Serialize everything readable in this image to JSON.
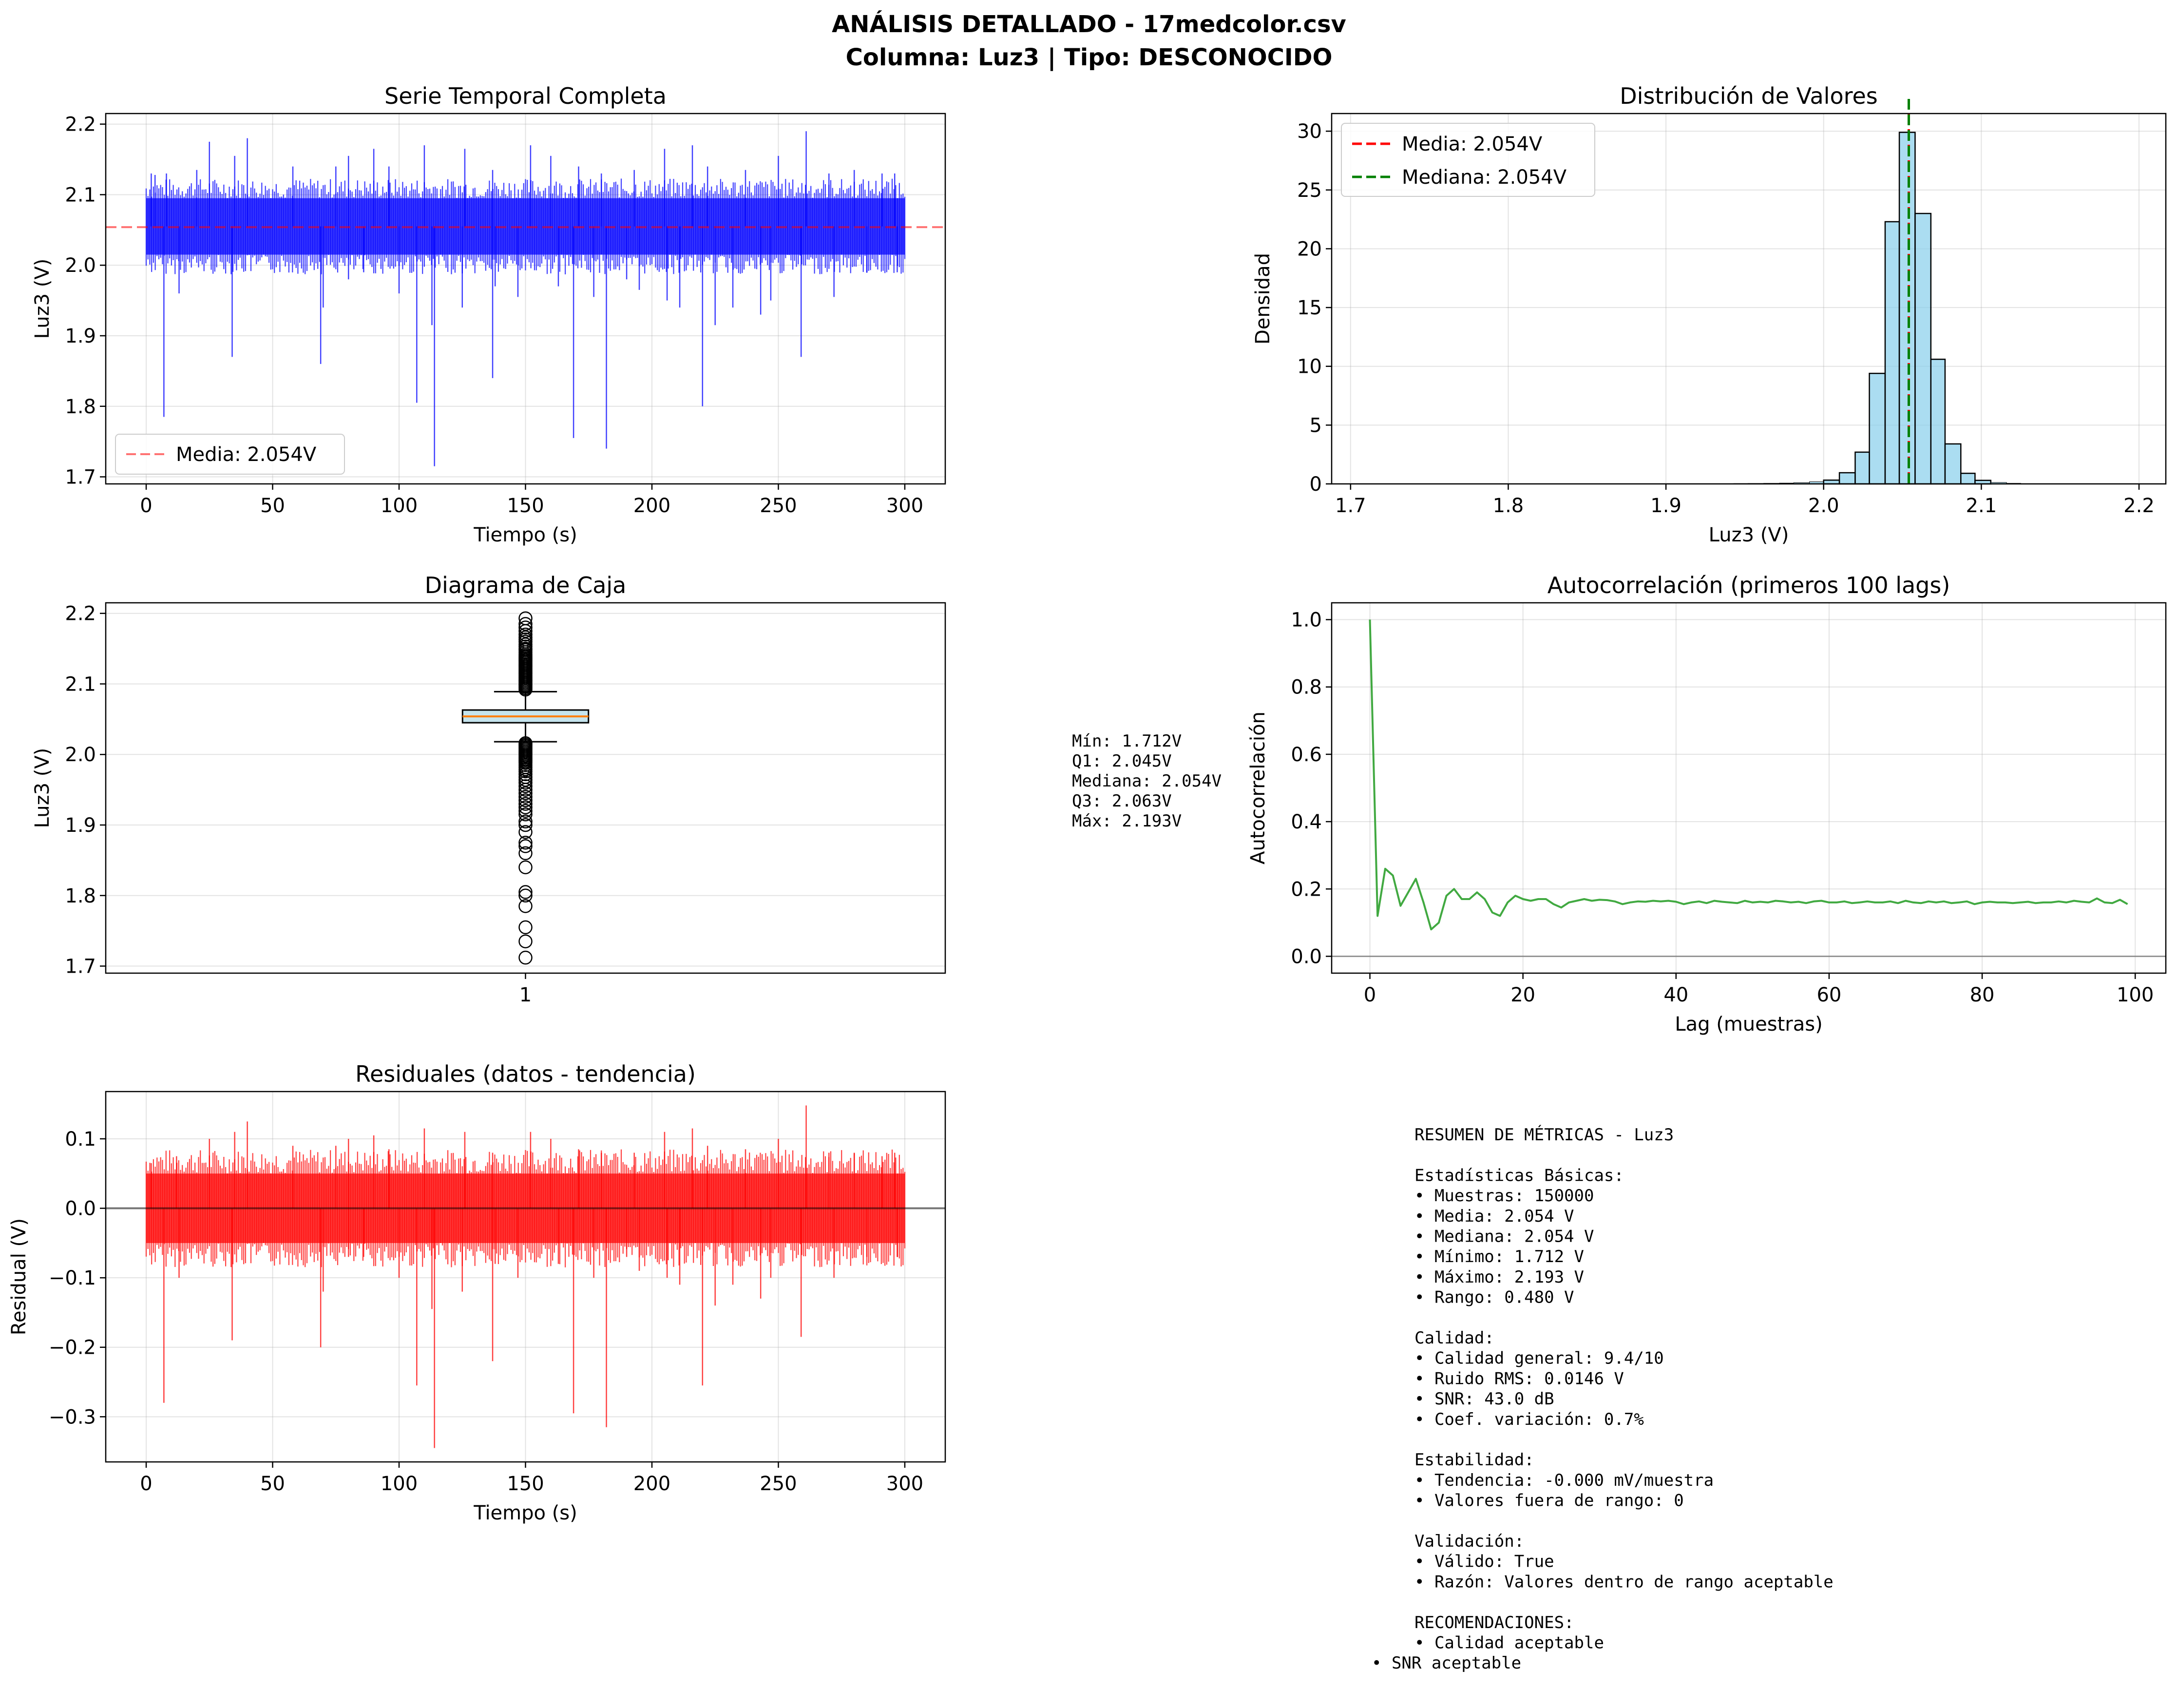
{
  "figure": {
    "title_line1": "ANÁLISIS DETALLADO - 17medcolor.csv",
    "title_line2": "Columna: Luz3 | Tipo: DESCONOCIDO"
  },
  "colors": {
    "series_blue": "#0000ff",
    "residual_red": "#ff0000",
    "mean_line": "#ff0000",
    "median_line": "#008000",
    "hist_fill": "#87ceeb",
    "acf_line": "#2ca02c",
    "box_median": "#ff7f0e",
    "box_fill": "#add8e6"
  },
  "chart_data": [
    {
      "type": "line",
      "id": "timeseries",
      "title": "Serie Temporal Completa",
      "xlabel": "Tiempo (s)",
      "ylabel": "Luz3 (V)",
      "xlim": [
        -16,
        316
      ],
      "ylim": [
        1.69,
        2.215
      ],
      "xticks": [
        0,
        50,
        100,
        150,
        200,
        250,
        300
      ],
      "yticks": [
        1.7,
        1.8,
        1.9,
        2.0,
        2.1,
        2.2
      ],
      "ytick_labels": [
        "1.7",
        "1.8",
        "1.9",
        "2.0",
        "2.1",
        "2.2"
      ],
      "legend": [
        {
          "label": "Media: 2.054V",
          "color": "#ff0000",
          "style": "dashed"
        }
      ],
      "legend_position": "lower-left",
      "grid": true,
      "mean": 2.054,
      "band": {
        "low": 2.015,
        "high": 2.095,
        "t_start": 0,
        "t_end": 300
      },
      "spikes_up": [
        [
          2,
          2.13
        ],
        [
          3.5,
          2.128
        ],
        [
          8,
          2.13
        ],
        [
          20,
          2.135
        ],
        [
          25,
          2.175
        ],
        [
          35,
          2.155
        ],
        [
          40,
          2.18
        ],
        [
          58,
          2.14
        ],
        [
          75,
          2.14
        ],
        [
          80,
          2.155
        ],
        [
          90,
          2.165
        ],
        [
          96,
          2.14
        ],
        [
          110,
          2.17
        ],
        [
          126,
          2.165
        ],
        [
          137,
          2.135
        ],
        [
          152,
          2.17
        ],
        [
          160,
          2.155
        ],
        [
          171,
          2.14
        ],
        [
          180,
          2.13
        ],
        [
          193,
          2.135
        ],
        [
          205,
          2.165
        ],
        [
          216,
          2.17
        ],
        [
          222,
          2.14
        ],
        [
          237,
          2.135
        ],
        [
          250,
          2.155
        ],
        [
          261,
          2.19
        ],
        [
          270,
          2.13
        ],
        [
          280,
          2.135
        ],
        [
          291,
          2.13
        ],
        [
          296,
          2.13
        ]
      ],
      "spikes_down": [
        [
          7,
          1.785
        ],
        [
          13,
          1.96
        ],
        [
          34,
          1.87
        ],
        [
          69,
          1.86
        ],
        [
          70,
          1.94
        ],
        [
          80,
          1.98
        ],
        [
          86,
          1.99
        ],
        [
          100,
          1.96
        ],
        [
          107,
          1.805
        ],
        [
          113,
          1.915
        ],
        [
          114,
          1.715
        ],
        [
          125,
          1.94
        ],
        [
          137,
          1.84
        ],
        [
          138,
          1.97
        ],
        [
          147,
          1.955
        ],
        [
          163,
          1.97
        ],
        [
          169,
          1.755
        ],
        [
          177,
          1.955
        ],
        [
          182,
          1.74
        ],
        [
          190,
          1.98
        ],
        [
          195,
          1.965
        ],
        [
          206,
          1.95
        ],
        [
          211,
          1.94
        ],
        [
          220,
          1.8
        ],
        [
          225,
          1.915
        ],
        [
          232,
          1.94
        ],
        [
          243,
          1.93
        ],
        [
          247,
          1.95
        ],
        [
          259,
          1.87
        ],
        [
          272,
          1.955
        ],
        [
          285,
          1.99
        ],
        [
          297,
          1.99
        ]
      ]
    },
    {
      "type": "bar",
      "id": "histogram",
      "title": "Distribución de Valores",
      "xlabel": "Luz3 (V)",
      "ylabel": "Densidad",
      "xlim": [
        1.688,
        2.217
      ],
      "ylim": [
        0,
        31.5
      ],
      "xticks": [
        1.7,
        1.8,
        1.9,
        2.0,
        2.1,
        2.2
      ],
      "xtick_labels": [
        "1.7",
        "1.8",
        "1.9",
        "2.0",
        "2.1",
        "2.2"
      ],
      "yticks": [
        0,
        5,
        10,
        15,
        20,
        25,
        30
      ],
      "grid": true,
      "bin_edges": [
        1.712,
        1.722,
        1.732,
        1.741,
        1.751,
        1.76,
        1.77,
        1.78,
        1.789,
        1.799,
        1.808,
        1.818,
        1.828,
        1.837,
        1.847,
        1.856,
        1.866,
        1.876,
        1.885,
        1.895,
        1.904,
        1.914,
        1.924,
        1.933,
        1.943,
        1.952,
        1.962,
        1.972,
        1.981,
        1.991,
        2.0,
        2.01,
        2.02,
        2.029,
        2.039,
        2.048,
        2.058,
        2.068,
        2.077,
        2.087,
        2.096,
        2.106,
        2.116,
        2.125,
        2.135,
        2.144,
        2.154,
        2.164,
        2.173,
        2.183,
        2.193
      ],
      "values": [
        0.01,
        0,
        0,
        0.01,
        0,
        0,
        0,
        0,
        0,
        0.01,
        0,
        0,
        0,
        0,
        0,
        0.01,
        0.01,
        0,
        0,
        0,
        0,
        0.01,
        0.02,
        0.02,
        0.03,
        0.04,
        0.05,
        0.07,
        0.1,
        0.18,
        0.32,
        0.95,
        2.7,
        9.4,
        22.3,
        29.9,
        23.0,
        10.6,
        3.4,
        0.9,
        0.3,
        0.12,
        0.05,
        0.02,
        0.01,
        0.01,
        0.01,
        0,
        0,
        0
      ],
      "mean": 2.054,
      "median": 2.054,
      "legend": [
        {
          "label": "Media: 2.054V",
          "color": "#ff0000",
          "style": "dashed"
        },
        {
          "label": "Mediana: 2.054V",
          "color": "#008000",
          "style": "dashed"
        }
      ],
      "legend_position": "upper-left"
    },
    {
      "type": "box",
      "id": "boxplot",
      "title": "Diagrama de Caja",
      "ylabel": "Luz3 (V)",
      "xtick_labels": [
        "1"
      ],
      "ylim": [
        1.69,
        2.215
      ],
      "yticks": [
        1.7,
        1.8,
        1.9,
        2.0,
        2.1,
        2.2
      ],
      "ytick_labels": [
        "1.7",
        "1.8",
        "1.9",
        "2.0",
        "2.1",
        "2.2"
      ],
      "grid": true,
      "q1": 2.045,
      "median": 2.054,
      "q3": 2.063,
      "whisker_low": 2.018,
      "whisker_high": 2.089,
      "outliers_high": [
        2.092,
        2.094,
        2.096,
        2.098,
        2.1,
        2.102,
        2.104,
        2.106,
        2.108,
        2.11,
        2.112,
        2.114,
        2.116,
        2.118,
        2.12,
        2.122,
        2.124,
        2.126,
        2.128,
        2.13,
        2.132,
        2.134,
        2.136,
        2.138,
        2.14,
        2.142,
        2.145,
        2.148,
        2.15,
        2.153,
        2.156,
        2.16,
        2.163,
        2.166,
        2.17,
        2.175,
        2.18,
        2.185,
        2.193
      ],
      "outliers_low": [
        2.016,
        2.014,
        2.012,
        2.01,
        2.008,
        2.006,
        2.004,
        2.002,
        2.0,
        1.998,
        1.996,
        1.994,
        1.992,
        1.99,
        1.988,
        1.985,
        1.982,
        1.979,
        1.976,
        1.972,
        1.968,
        1.964,
        1.96,
        1.955,
        1.95,
        1.945,
        1.94,
        1.935,
        1.93,
        1.925,
        1.92,
        1.915,
        1.905,
        1.9,
        1.89,
        1.875,
        1.87,
        1.86,
        1.84,
        1.805,
        1.8,
        1.785,
        1.755,
        1.735,
        1.712
      ],
      "stats_lines": [
        "Mín: 1.712V",
        "Q1: 2.045V",
        "Mediana: 2.054V",
        "Q3: 2.063V",
        "Máx: 2.193V"
      ]
    },
    {
      "type": "line",
      "id": "autocorr",
      "title": "Autocorrelación (primeros 100 lags)",
      "xlabel": "Lag (muestras)",
      "ylabel": "Autocorrelación",
      "xlim": [
        -5,
        104
      ],
      "ylim": [
        -0.05,
        1.05
      ],
      "xticks": [
        0,
        20,
        40,
        60,
        80,
        100
      ],
      "yticks": [
        0.0,
        0.2,
        0.4,
        0.6,
        0.8,
        1.0
      ],
      "ytick_labels": [
        "0.0",
        "0.2",
        "0.4",
        "0.6",
        "0.8",
        "1.0"
      ],
      "grid": true,
      "x": [
        0,
        1,
        2,
        3,
        4,
        5,
        6,
        7,
        8,
        9,
        10,
        11,
        12,
        13,
        14,
        15,
        16,
        17,
        18,
        19,
        20,
        21,
        22,
        23,
        24,
        25,
        26,
        27,
        28,
        29,
        30,
        31,
        32,
        33,
        34,
        35,
        36,
        37,
        38,
        39,
        40,
        41,
        42,
        43,
        44,
        45,
        46,
        47,
        48,
        49,
        50,
        51,
        52,
        53,
        54,
        55,
        56,
        57,
        58,
        59,
        60,
        61,
        62,
        63,
        64,
        65,
        66,
        67,
        68,
        69,
        70,
        71,
        72,
        73,
        74,
        75,
        76,
        77,
        78,
        79,
        80,
        81,
        82,
        83,
        84,
        85,
        86,
        87,
        88,
        89,
        90,
        91,
        92,
        93,
        94,
        95,
        96,
        97,
        98,
        99
      ],
      "y": [
        1.0,
        0.12,
        0.26,
        0.24,
        0.15,
        0.19,
        0.23,
        0.16,
        0.08,
        0.1,
        0.18,
        0.2,
        0.17,
        0.17,
        0.19,
        0.17,
        0.13,
        0.12,
        0.16,
        0.18,
        0.17,
        0.165,
        0.17,
        0.17,
        0.155,
        0.145,
        0.16,
        0.165,
        0.17,
        0.165,
        0.168,
        0.167,
        0.163,
        0.155,
        0.16,
        0.163,
        0.162,
        0.165,
        0.163,
        0.165,
        0.162,
        0.155,
        0.16,
        0.163,
        0.158,
        0.165,
        0.162,
        0.16,
        0.158,
        0.165,
        0.16,
        0.162,
        0.16,
        0.165,
        0.163,
        0.16,
        0.162,
        0.158,
        0.163,
        0.165,
        0.16,
        0.16,
        0.163,
        0.158,
        0.16,
        0.163,
        0.16,
        0.16,
        0.163,
        0.158,
        0.165,
        0.16,
        0.158,
        0.163,
        0.16,
        0.163,
        0.158,
        0.16,
        0.163,
        0.155,
        0.16,
        0.162,
        0.16,
        0.16,
        0.158,
        0.16,
        0.162,
        0.158,
        0.16,
        0.16,
        0.163,
        0.16,
        0.165,
        0.162,
        0.16,
        0.172,
        0.16,
        0.158,
        0.168,
        0.155
      ]
    },
    {
      "type": "line",
      "id": "residuals",
      "title": "Residuales (datos - tendencia)",
      "xlabel": "Tiempo (s)",
      "ylabel": "Residual (V)",
      "xlim": [
        -16,
        316
      ],
      "ylim": [
        -0.365,
        0.168
      ],
      "xticks": [
        0,
        50,
        100,
        150,
        200,
        250,
        300
      ],
      "yticks": [
        -0.3,
        -0.2,
        -0.1,
        0.0,
        0.1
      ],
      "ytick_labels": [
        "−0.3",
        "−0.2",
        "−0.1",
        "0.0",
        "0.1"
      ],
      "grid": true,
      "band": {
        "low": -0.05,
        "high": 0.05,
        "t_start": 0,
        "t_end": 300
      },
      "spikes_up": [
        [
          2,
          0.065
        ],
        [
          12,
          0.075
        ],
        [
          25,
          0.1
        ],
        [
          35,
          0.11
        ],
        [
          40,
          0.125
        ],
        [
          58,
          0.09
        ],
        [
          75,
          0.09
        ],
        [
          80,
          0.1
        ],
        [
          90,
          0.105
        ],
        [
          96,
          0.085
        ],
        [
          110,
          0.115
        ],
        [
          126,
          0.11
        ],
        [
          137,
          0.08
        ],
        [
          152,
          0.11
        ],
        [
          160,
          0.1
        ],
        [
          171,
          0.085
        ],
        [
          180,
          0.08
        ],
        [
          193,
          0.08
        ],
        [
          205,
          0.11
        ],
        [
          216,
          0.115
        ],
        [
          222,
          0.09
        ],
        [
          237,
          0.085
        ],
        [
          250,
          0.1
        ],
        [
          261,
          0.148
        ],
        [
          270,
          0.08
        ],
        [
          280,
          0.08
        ],
        [
          291,
          0.075
        ],
        [
          296,
          0.08
        ]
      ],
      "spikes_down": [
        [
          7,
          -0.28
        ],
        [
          13,
          -0.1
        ],
        [
          34,
          -0.19
        ],
        [
          69,
          -0.2
        ],
        [
          70,
          -0.12
        ],
        [
          80,
          -0.07
        ],
        [
          86,
          -0.07
        ],
        [
          100,
          -0.1
        ],
        [
          107,
          -0.255
        ],
        [
          113,
          -0.145
        ],
        [
          114,
          -0.345
        ],
        [
          125,
          -0.12
        ],
        [
          137,
          -0.22
        ],
        [
          138,
          -0.08
        ],
        [
          147,
          -0.1
        ],
        [
          163,
          -0.08
        ],
        [
          169,
          -0.295
        ],
        [
          177,
          -0.1
        ],
        [
          182,
          -0.315
        ],
        [
          190,
          -0.07
        ],
        [
          195,
          -0.09
        ],
        [
          206,
          -0.1
        ],
        [
          211,
          -0.11
        ],
        [
          220,
          -0.255
        ],
        [
          225,
          -0.14
        ],
        [
          232,
          -0.11
        ],
        [
          243,
          -0.13
        ],
        [
          247,
          -0.1
        ],
        [
          259,
          -0.185
        ],
        [
          272,
          -0.1
        ],
        [
          285,
          -0.07
        ],
        [
          297,
          -0.07
        ]
      ]
    }
  ],
  "summary": {
    "title": "RESUMEN DE MÉTRICAS - Luz3",
    "indented": [
      "",
      "Estadísticas Básicas:",
      "• Muestras: 150000",
      "• Media: 2.054 V",
      "• Mediana: 2.054 V",
      "• Mínimo: 1.712 V",
      "• Máximo: 2.193 V",
      "• Rango: 0.480 V",
      "",
      "Calidad:",
      "• Calidad general: 9.4/10",
      "• Ruido RMS: 0.0146 V",
      "• SNR: 43.0 dB",
      "• Coef. variación: 0.7%",
      "",
      "Estabilidad:",
      "• Tendencia: -0.000 mV/muestra",
      "• Valores fuera de rango: 0",
      "",
      "Validación:",
      "• Válido: True",
      "• Razón: Valores dentro de rango aceptable",
      "",
      "RECOMENDACIONES:",
      "• Calidad aceptable"
    ],
    "last_line": "• SNR aceptable"
  }
}
